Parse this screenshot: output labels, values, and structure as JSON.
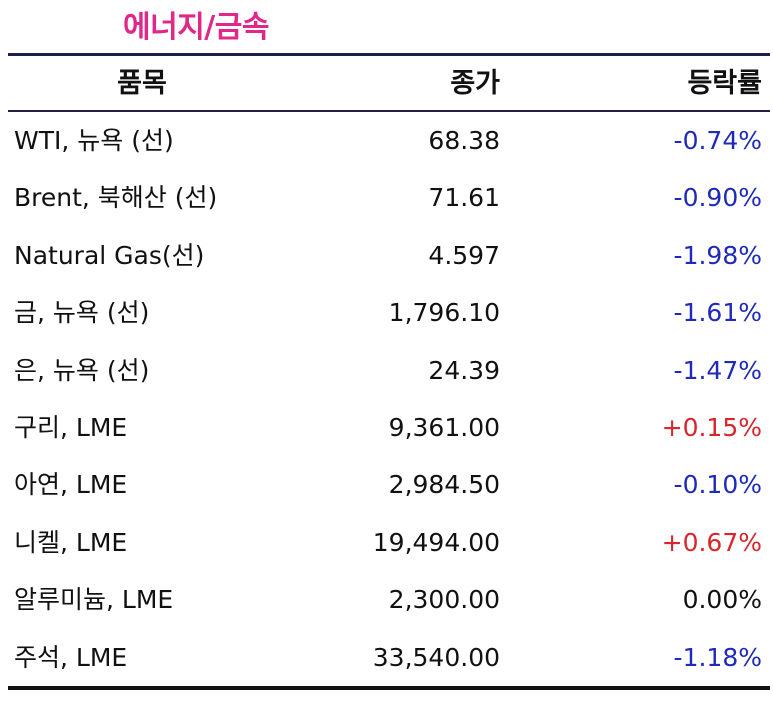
{
  "title": "에너지/금속",
  "colors": {
    "title": "#e0288a",
    "negative": "#1f2bb8",
    "positive": "#d8262b",
    "neutral": "#111111"
  },
  "headers": {
    "item": "품목",
    "close": "종가",
    "change": "등락률"
  },
  "rows": [
    {
      "name": "WTI, 뉴욕 (선)",
      "close": "68.38",
      "change": "-0.74%",
      "dir": "neg"
    },
    {
      "name": "Brent, 북해산 (선)",
      "close": "71.61",
      "change": "-0.90%",
      "dir": "neg"
    },
    {
      "name": "Natural Gas(선)",
      "close": "4.597",
      "change": "-1.98%",
      "dir": "neg"
    },
    {
      "name": "금, 뉴욕  (선)",
      "close": "1,796.10",
      "change": "-1.61%",
      "dir": "neg"
    },
    {
      "name": "은, 뉴욕  (선)",
      "close": "24.39",
      "change": "-1.47%",
      "dir": "neg"
    },
    {
      "name": "구리, LME",
      "close": "9,361.00",
      "change": "+0.15%",
      "dir": "pos"
    },
    {
      "name": "아연, LME",
      "close": "2,984.50",
      "change": "-0.10%",
      "dir": "neg"
    },
    {
      "name": "니켈, LME",
      "close": "19,494.00",
      "change": "+0.67%",
      "dir": "pos"
    },
    {
      "name": "알루미늄, LME",
      "close": "2,300.00",
      "change": "0.00%",
      "dir": "flat"
    },
    {
      "name": "주석, LME",
      "close": "33,540.00",
      "change": "-1.18%",
      "dir": "neg"
    }
  ]
}
